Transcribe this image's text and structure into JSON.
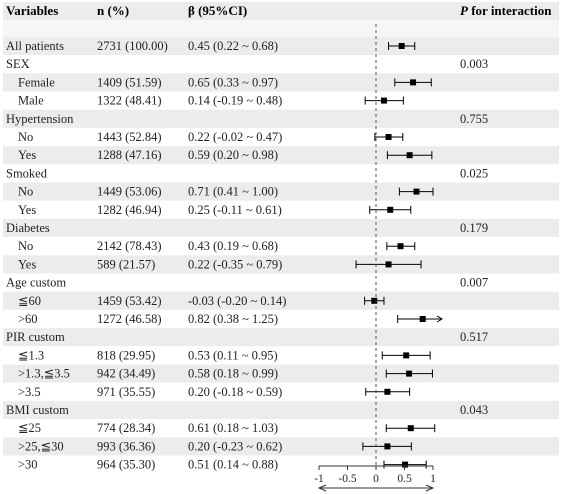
{
  "chart_data": {
    "type": "forest",
    "columns": {
      "variables": "Variables",
      "n": "n (%)",
      "beta": "β (95%CI)",
      "p": "P for interaction"
    },
    "x_axis": {
      "ticks": [
        -1,
        -0.5,
        0,
        0.5,
        1
      ],
      "tick_labels": [
        "-1",
        "-0.5",
        "0",
        "0.5",
        "1"
      ],
      "xlim": [
        -1,
        1
      ],
      "reference_line": 0
    },
    "rows": [
      {
        "kind": "group",
        "label": "All patients",
        "n": "2731 (100.00)",
        "ci_text": "0.45 (0.22 ~ 0.68)",
        "est": 0.45,
        "lo": 0.22,
        "hi": 0.68,
        "p": ""
      },
      {
        "kind": "group",
        "label": "SEX",
        "p": "0.003"
      },
      {
        "kind": "sub",
        "label": "Female",
        "n": "1409 (51.59)",
        "ci_text": "0.65 (0.33 ~ 0.97)",
        "est": 0.65,
        "lo": 0.33,
        "hi": 0.97
      },
      {
        "kind": "sub",
        "label": "Male",
        "n": "1322 (48.41)",
        "ci_text": "0.14 (-0.19 ~ 0.48)",
        "est": 0.14,
        "lo": -0.19,
        "hi": 0.48
      },
      {
        "kind": "group",
        "label": "Hypertension",
        "p": "0.755"
      },
      {
        "kind": "sub",
        "label": "No",
        "n": "1443 (52.84)",
        "ci_text": "0.22 (-0.02 ~ 0.47)",
        "est": 0.22,
        "lo": -0.02,
        "hi": 0.47
      },
      {
        "kind": "sub",
        "label": "Yes",
        "n": "1288 (47.16)",
        "ci_text": "0.59 (0.20 ~ 0.98)",
        "est": 0.59,
        "lo": 0.2,
        "hi": 0.98
      },
      {
        "kind": "group",
        "label": "Smoked",
        "p": "0.025"
      },
      {
        "kind": "sub",
        "label": "No",
        "n": "1449 (53.06)",
        "ci_text": "0.71 (0.41 ~ 1.00)",
        "est": 0.71,
        "lo": 0.41,
        "hi": 1.0
      },
      {
        "kind": "sub",
        "label": "Yes",
        "n": "1282 (46.94)",
        "ci_text": "0.25 (-0.11 ~ 0.61)",
        "est": 0.25,
        "lo": -0.11,
        "hi": 0.61
      },
      {
        "kind": "group",
        "label": "Diabetes",
        "p": "0.179"
      },
      {
        "kind": "sub",
        "label": "No",
        "n": "2142 (78.43)",
        "ci_text": "0.43 (0.19 ~ 0.68)",
        "est": 0.43,
        "lo": 0.19,
        "hi": 0.68
      },
      {
        "kind": "sub",
        "label": "Yes",
        "n": "589 (21.57)",
        "ci_text": "0.22 (-0.35 ~ 0.79)",
        "est": 0.22,
        "lo": -0.35,
        "hi": 0.79
      },
      {
        "kind": "group",
        "label": "Age custom",
        "p": "0.007"
      },
      {
        "kind": "sub",
        "label": "≦60",
        "n": "1459 (53.42)",
        "ci_text": "-0.03 (-0.20 ~ 0.14)",
        "est": -0.03,
        "lo": -0.2,
        "hi": 0.14
      },
      {
        "kind": "sub",
        "label": ">60",
        "n": "1272 (46.58)",
        "ci_text": "0.82 (0.38 ~ 1.25)",
        "est": 0.82,
        "lo": 0.38,
        "hi": 1.25
      },
      {
        "kind": "group",
        "label": "PIR custom",
        "p": "0.517"
      },
      {
        "kind": "sub",
        "label": "≦1.3",
        "n": "818 (29.95)",
        "ci_text": "0.53 (0.11 ~ 0.95)",
        "est": 0.53,
        "lo": 0.11,
        "hi": 0.95
      },
      {
        "kind": "sub",
        "label": ">1.3,≦3.5",
        "n": "942 (34.49)",
        "ci_text": "0.58 (0.18 ~ 0.99)",
        "est": 0.58,
        "lo": 0.18,
        "hi": 0.99
      },
      {
        "kind": "sub",
        "label": ">3.5",
        "n": "971 (35.55)",
        "ci_text": "0.20 (-0.18 ~ 0.59)",
        "est": 0.2,
        "lo": -0.18,
        "hi": 0.59
      },
      {
        "kind": "group",
        "label": "BMI custom",
        "p": "0.043"
      },
      {
        "kind": "sub",
        "label": "≦25",
        "n": "774 (28.34)",
        "ci_text": "0.61 (0.18 ~ 1.03)",
        "est": 0.61,
        "lo": 0.18,
        "hi": 1.03
      },
      {
        "kind": "sub",
        "label": ">25,≦30",
        "n": "993 (36.36)",
        "ci_text": "0.20 (-0.23 ~ 0.62)",
        "est": 0.2,
        "lo": -0.23,
        "hi": 0.62
      },
      {
        "kind": "sub",
        "label": ">30",
        "n": "964 (35.30)",
        "ci_text": "0.51 (0.14 ~ 0.88)",
        "est": 0.51,
        "lo": 0.14,
        "hi": 0.88
      }
    ],
    "colors": {
      "band": "#ececec",
      "text": "#222222",
      "marker": "#000000"
    }
  }
}
